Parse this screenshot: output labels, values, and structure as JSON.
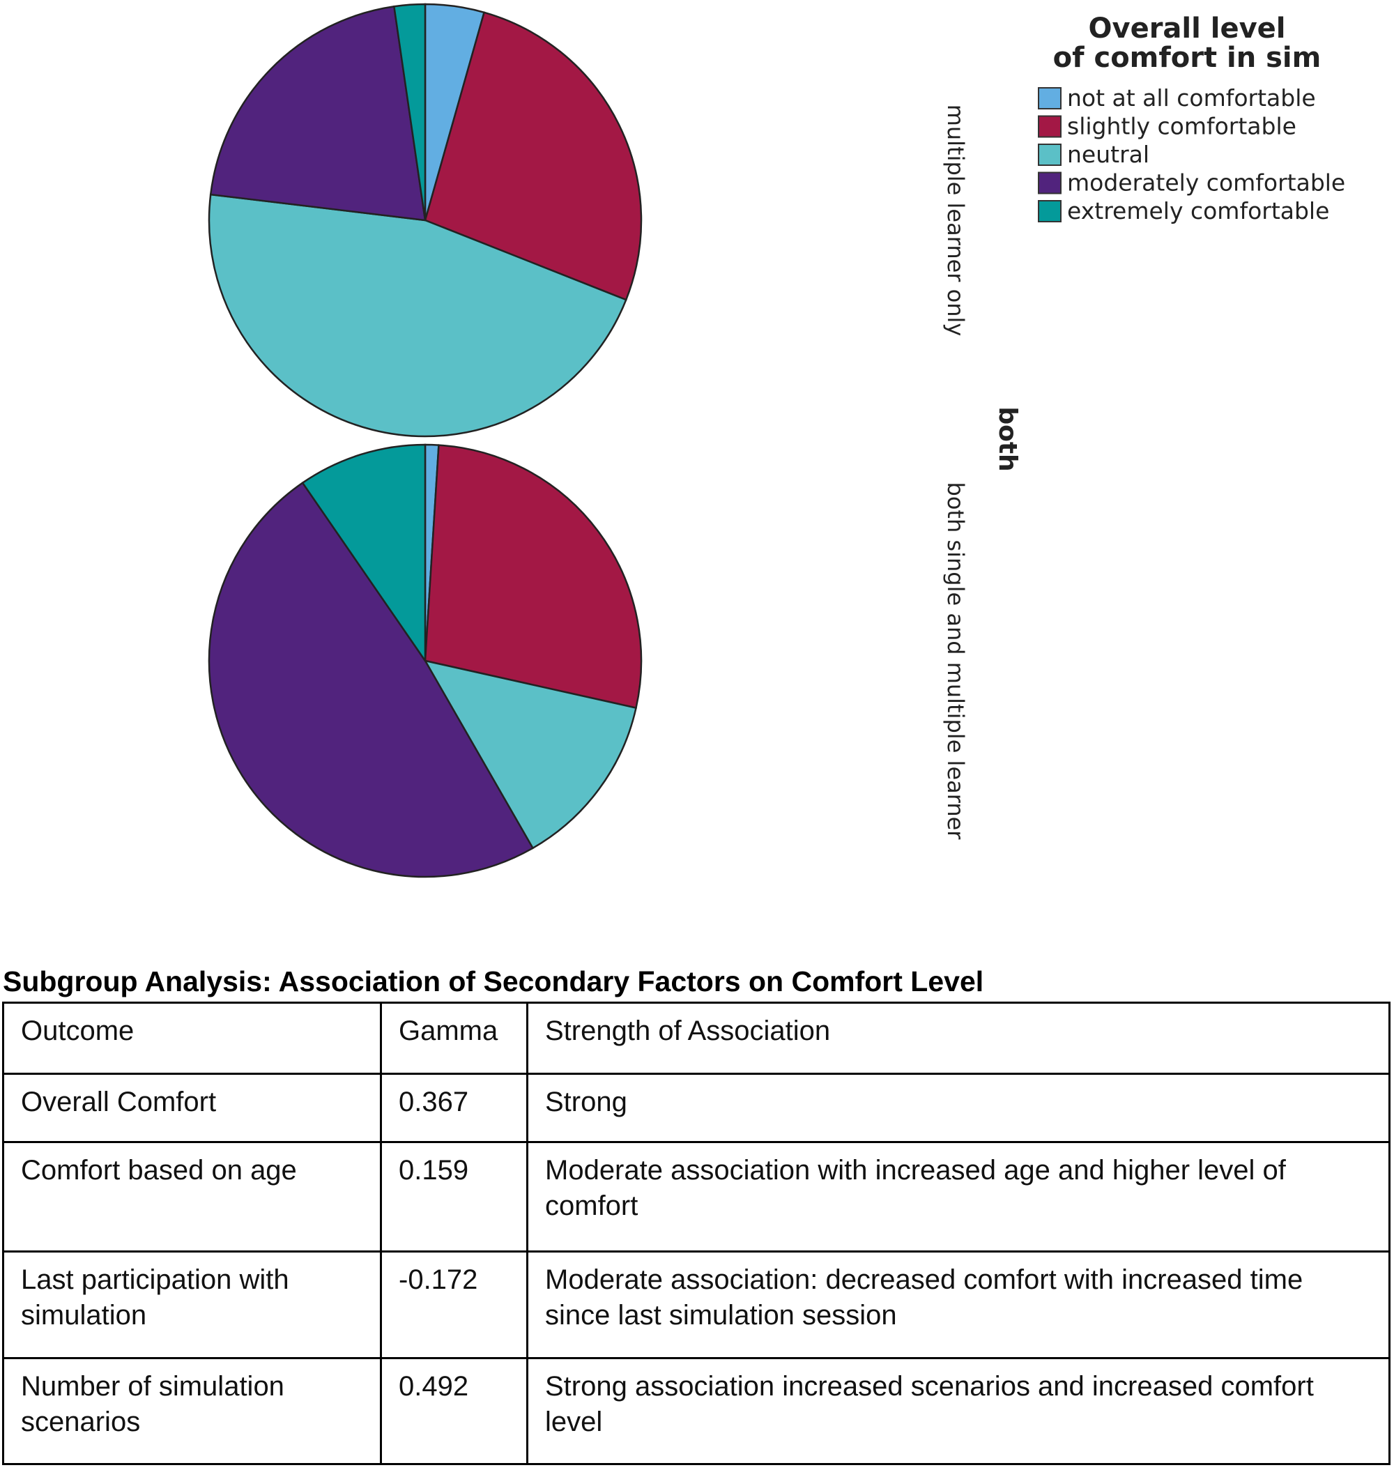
{
  "legend": {
    "title": "Overall level of comfort in sim",
    "items": [
      {
        "name": "not at all comfortable",
        "color": "#62aee2"
      },
      {
        "name": "slightly comfortable",
        "color": "#a31845"
      },
      {
        "name": "neutral",
        "color": "#5bc0c7"
      },
      {
        "name": "moderately comfortable",
        "color": "#51237d"
      },
      {
        "name": "extremely comfortable",
        "color": "#049a9a"
      }
    ]
  },
  "facet_title": "both",
  "chart_data": [
    {
      "type": "pie",
      "facet_label": "multiple learner only",
      "values": [
        4.4,
        26.6,
        45.9,
        20.8,
        2.3
      ]
    },
    {
      "type": "pie",
      "facet_label": "both single and multiple learner",
      "values": [
        1,
        27.5,
        13.2,
        48.7,
        9.6
      ]
    }
  ],
  "table": {
    "title": "Subgroup Analysis: Association of Secondary Factors on Comfort Level",
    "header": [
      "Outcome",
      "Gamma",
      "Strength of Association"
    ],
    "rows": [
      [
        "Overall Comfort",
        0.367,
        "Strong"
      ],
      [
        "Comfort based on age",
        0.159,
        "Moderate association with increased age and higher level of comfort"
      ],
      [
        "Last participation with simulation",
        -0.172,
        "Moderate association: decreased comfort with increased time since last simulation session"
      ],
      [
        "Number of simulation scenarios",
        0.492,
        "Strong association increased scenarios and increased comfort level"
      ]
    ]
  }
}
